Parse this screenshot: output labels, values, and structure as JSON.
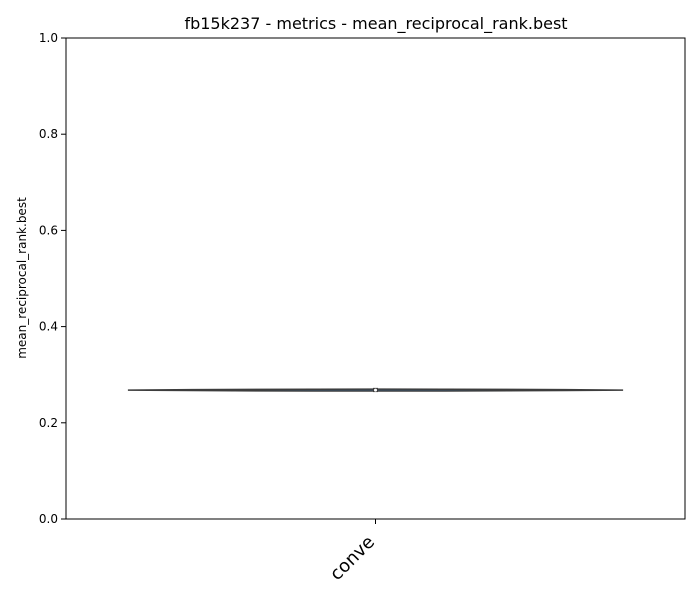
{
  "chart_data": {
    "type": "violin",
    "title": "fb15k237 - metrics - mean_reciprocal_rank.best",
    "xlabel": "",
    "ylabel": "mean_reciprocal_rank.best",
    "ylim": [
      0.0,
      1.0
    ],
    "yticks": [
      "0.0",
      "0.2",
      "0.4",
      "0.6",
      "0.8",
      "1.0"
    ],
    "categories": [
      "conve"
    ],
    "violins": [
      {
        "category": "conve",
        "center": 0.268,
        "min": 0.266,
        "max": 0.27,
        "median": 0.268,
        "q1": 0.267,
        "q3": 0.2695,
        "color": "#3a6e9e"
      }
    ],
    "grid": false,
    "colors": {
      "violin_fill": "#3a6e9e",
      "violin_edge": "#3d3d3d",
      "box": "#3d3d3d",
      "median": "#ffffff"
    }
  }
}
